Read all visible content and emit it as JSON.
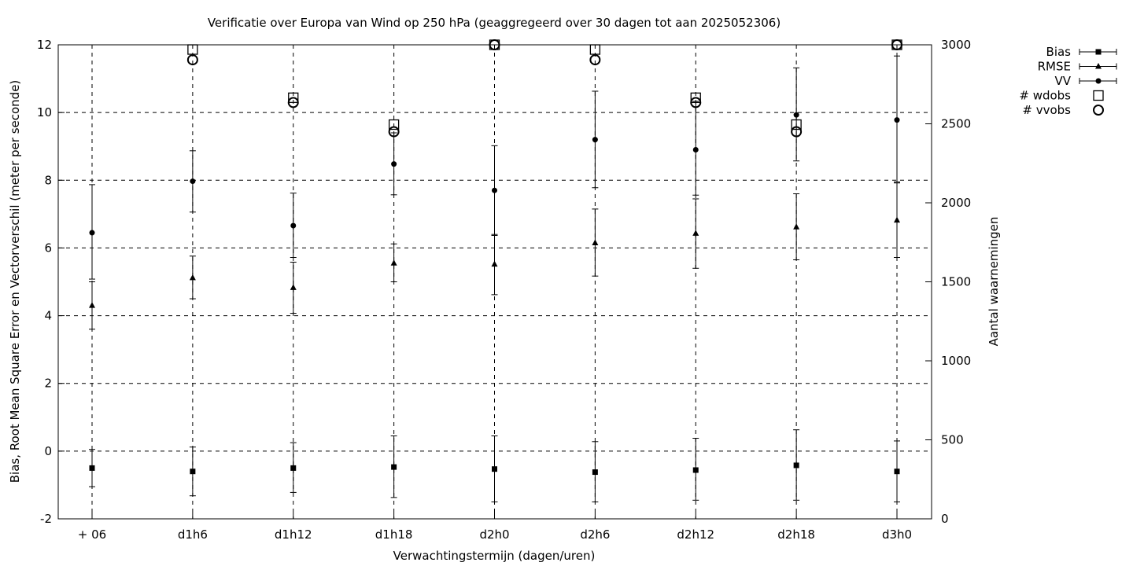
{
  "chart_data": {
    "type": "scatter",
    "title": "Verificatie over Europa van Wind op 250 hPa (geaggregeerd over 30 dagen tot aan 2025052306)",
    "xlabel": "Verwachtingstermijn (dagen/uren)",
    "ylabel": "Bias, Root Mean Square Error en Vectorverschil (meter per seconde)",
    "y2label": "Aantal waarnemingen",
    "categories": [
      "+ 06",
      "d1h6",
      "d1h12",
      "d1h18",
      "d2h0",
      "d2h6",
      "d2h12",
      "d2h18",
      "d3h0"
    ],
    "ylim": [
      -2,
      12
    ],
    "yticks": [
      -2,
      0,
      2,
      4,
      6,
      8,
      10,
      12
    ],
    "y2lim": [
      0,
      3000
    ],
    "y2ticks": [
      0,
      500,
      1000,
      1500,
      2000,
      2500,
      3000
    ],
    "grid": true,
    "legend_position": "outside-top-right",
    "series": [
      {
        "name": "Bias",
        "axis": "left",
        "marker": "square",
        "values": [
          -0.5,
          -0.6,
          -0.5,
          -0.47,
          -0.53,
          -0.62,
          -0.56,
          -0.42,
          -0.6
        ],
        "lower": [
          -1.05,
          -1.32,
          -1.22,
          -1.37,
          -1.5,
          -1.5,
          -1.45,
          -1.45,
          -1.5
        ],
        "upper": [
          0.05,
          0.12,
          0.25,
          0.45,
          0.45,
          0.28,
          0.38,
          0.63,
          0.3
        ]
      },
      {
        "name": "RMSE",
        "axis": "left",
        "marker": "triangle",
        "values": [
          4.3,
          5.12,
          4.83,
          5.55,
          5.52,
          6.15,
          6.43,
          6.62,
          6.82
        ],
        "lower": [
          3.6,
          4.5,
          4.07,
          5.0,
          4.62,
          5.17,
          5.4,
          5.65,
          5.72
        ],
        "upper": [
          5.0,
          5.76,
          5.58,
          6.12,
          6.37,
          7.15,
          7.45,
          7.6,
          7.92
        ]
      },
      {
        "name": "VV",
        "axis": "left",
        "marker": "circle",
        "values": [
          6.45,
          7.97,
          6.66,
          8.48,
          7.7,
          9.2,
          8.9,
          9.93,
          9.78
        ],
        "lower": [
          5.08,
          7.06,
          5.72,
          7.57,
          6.4,
          7.78,
          7.56,
          8.57,
          7.95
        ],
        "upper": [
          7.87,
          8.87,
          7.62,
          9.4,
          9.02,
          10.63,
          10.33,
          11.32,
          11.67
        ]
      },
      {
        "name": "# wdobs",
        "axis": "right",
        "marker": "open-square",
        "values": [
          null,
          2970,
          2665,
          2495,
          3000,
          2970,
          2665,
          2495,
          3000
        ]
      },
      {
        "name": "# vvobs",
        "axis": "right",
        "marker": "open-circle",
        "values": [
          null,
          2905,
          2635,
          2450,
          3000,
          2905,
          2635,
          2450,
          3000
        ]
      }
    ]
  }
}
